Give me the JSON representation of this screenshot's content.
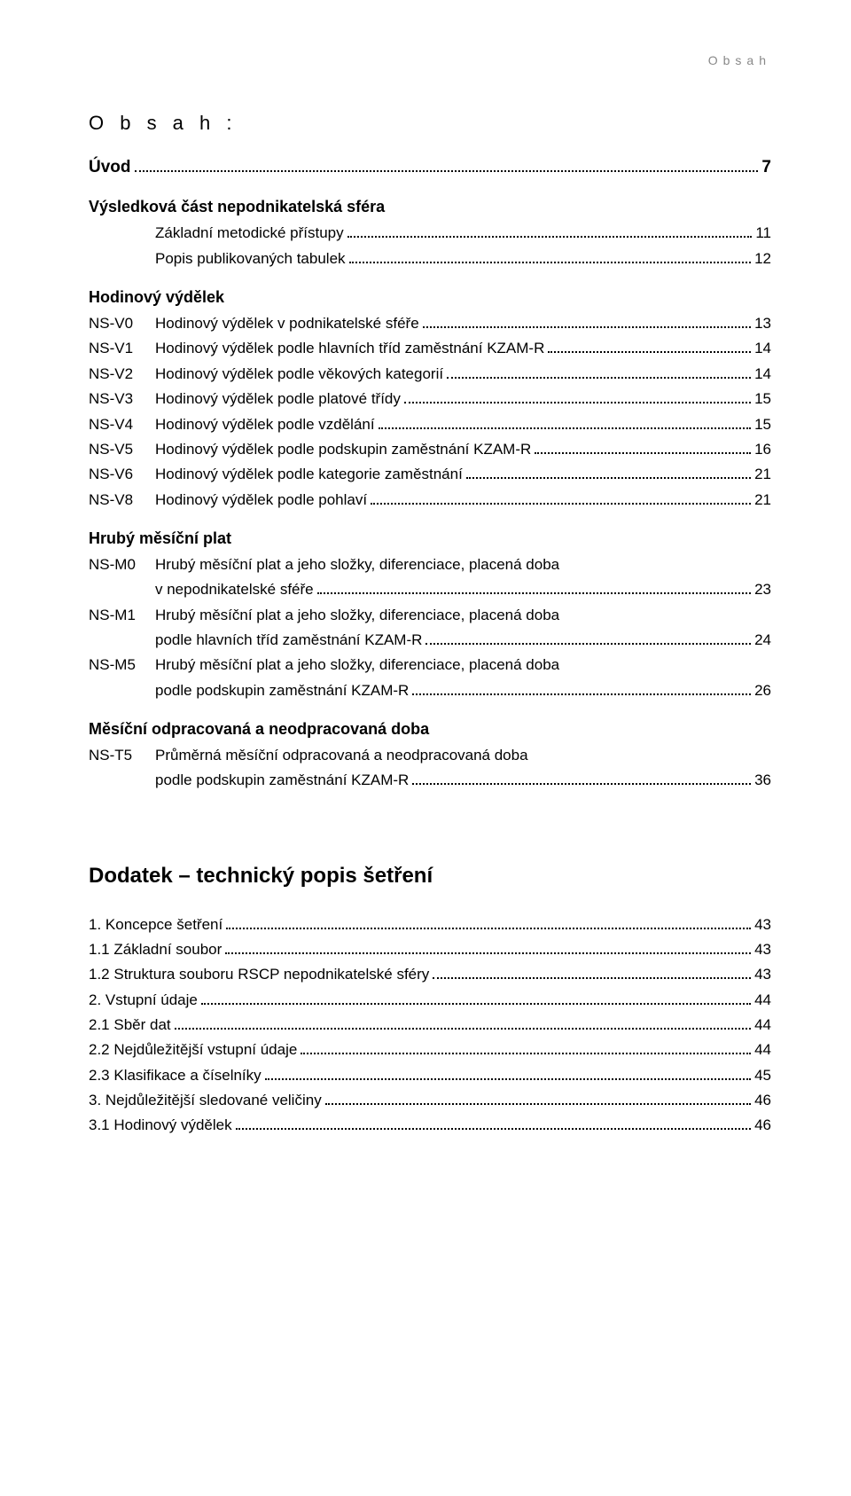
{
  "runningHeader": "Obsah",
  "heading": "O b s a h :",
  "firstLine": {
    "label": "Úvod",
    "page": "7"
  },
  "group1": {
    "title": "Výsledková část nepodnikatelská sféra",
    "rows": [
      {
        "code": "",
        "label": "Základní metodické přístupy",
        "page": "11"
      },
      {
        "code": "",
        "label": "Popis publikovaných tabulek",
        "page": "12"
      }
    ]
  },
  "group2": {
    "title": "Hodinový výdělek",
    "rows": [
      {
        "code": "NS-V0",
        "label": "Hodinový výdělek v podnikatelské sféře",
        "page": "13"
      },
      {
        "code": "NS-V1",
        "label": "Hodinový výdělek podle hlavních tříd zaměstnání KZAM-R",
        "page": "14"
      },
      {
        "code": "NS-V2",
        "label": "Hodinový výdělek podle věkových kategorií",
        "page": "14"
      },
      {
        "code": "NS-V3",
        "label": "Hodinový výdělek podle platové třídy",
        "page": "15"
      },
      {
        "code": "NS-V4",
        "label": "Hodinový výdělek podle vzdělání",
        "page": "15"
      },
      {
        "code": "NS-V5",
        "label": "Hodinový výdělek podle podskupin zaměstnání KZAM-R",
        "page": "16"
      },
      {
        "code": "NS-V6",
        "label": "Hodinový výdělek podle kategorie zaměstnání",
        "page": "21"
      },
      {
        "code": "NS-V8",
        "label": "Hodinový výdělek podle pohlaví",
        "page": "21"
      }
    ]
  },
  "group3": {
    "title": "Hrubý měsíční plat",
    "rows": [
      {
        "code": "NS-M0",
        "label1": "Hrubý měsíční plat a jeho složky, diferenciace, placená doba",
        "label2": "v nepodnikatelské sféře",
        "page": "23"
      },
      {
        "code": "NS-M1",
        "label1": "Hrubý měsíční plat a jeho složky, diferenciace, placená doba",
        "label2": "podle hlavních tříd zaměstnání KZAM-R",
        "page": "24"
      },
      {
        "code": "NS-M5",
        "label1": "Hrubý měsíční plat a jeho složky, diferenciace, placená doba",
        "label2": "podle podskupin zaměstnání KZAM-R",
        "page": "26"
      }
    ]
  },
  "group4": {
    "title": "Měsíční odpracovaná a neodpracovaná doba",
    "rows": [
      {
        "code": "NS-T5",
        "label1": "Průměrná měsíční odpracovaná a neodpracovaná doba",
        "label2": "podle podskupin zaměstnání KZAM-R",
        "page": "36"
      }
    ]
  },
  "dodatek": {
    "title": "Dodatek – technický popis šetření",
    "rows": [
      {
        "label": "1. Koncepce šetření",
        "page": "43"
      },
      {
        "label": "1.1 Základní soubor",
        "page": "43"
      },
      {
        "label": "1.2 Struktura souboru RSCP nepodnikatelské sféry",
        "page": "43"
      },
      {
        "label": "2. Vstupní údaje",
        "page": "44"
      },
      {
        "label": "2.1 Sběr dat",
        "page": "44"
      },
      {
        "label": "2.2 Nejdůležitější vstupní údaje",
        "page": "44"
      },
      {
        "label": "2.3 Klasifikace a číselníky",
        "page": "45"
      },
      {
        "label": "3. Nejdůležitější sledované veličiny",
        "page": "46"
      },
      {
        "label": "3.1 Hodinový výdělek",
        "page": "46"
      }
    ]
  }
}
